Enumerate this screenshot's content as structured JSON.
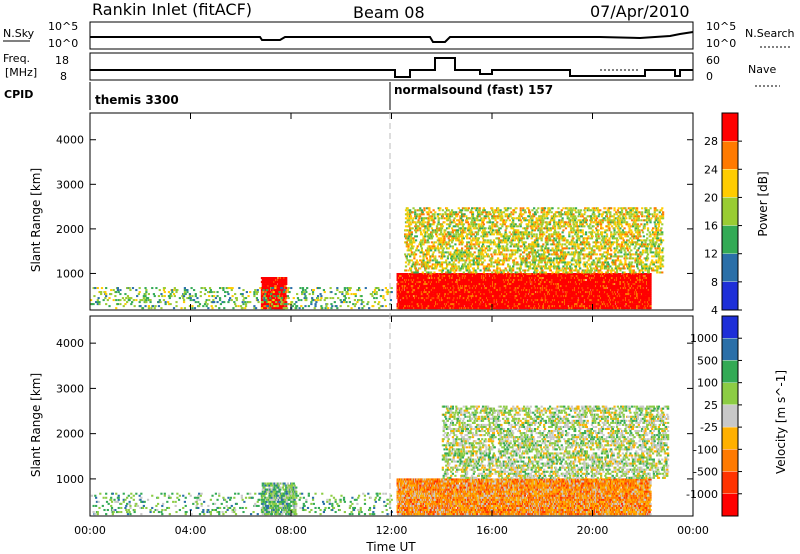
{
  "header": {
    "title": "Rankin Inlet (fitACF)",
    "beam": "Beam 08",
    "date": "07/Apr/2010"
  },
  "strips": {
    "nsky_label": "N.Sky",
    "nsky_ticks": [
      "10^5",
      "10^0"
    ],
    "nsearch_label": "N.Search",
    "nsearch_ticks": [
      "10^5",
      "10^0"
    ],
    "freq_label_1": "Freq.",
    "freq_label_2": "[MHz]",
    "freq_ticks": [
      "18",
      "8"
    ],
    "nave_label": "Nave",
    "nave_ticks": [
      "60",
      "0"
    ],
    "cpid_label": "CPID",
    "cpid_modes": [
      "themis 3300",
      "normalsound (fast) 157"
    ]
  },
  "time_axis": {
    "ticks": [
      "00:00",
      "04:00",
      "08:00",
      "12:00",
      "16:00",
      "20:00",
      "00:00"
    ],
    "label": "Time UT"
  },
  "chart_data": [
    {
      "type": "heatmap",
      "panel": "power",
      "ylabel": "Slant Range [km]",
      "yticks": [
        "1000",
        "2000",
        "3000",
        "4000"
      ],
      "ylim": [
        180,
        4600
      ],
      "xlim_hours": [
        0,
        24
      ],
      "colorbar_label": "Power [dB]",
      "colorbar_ticks": [
        "28",
        "24",
        "20",
        "16",
        "12",
        "8",
        "4"
      ],
      "colorbar_colors": [
        "#ff0000",
        "#ff7a00",
        "#ffcc00",
        "#99cc33",
        "#33aa55",
        "#2a6fa8",
        "#1e2fd8"
      ],
      "scatter_regions": [
        {
          "t0": 6.8,
          "t1": 7.8,
          "r0": 200,
          "r1": 900,
          "level": 0,
          "density": 0.8
        },
        {
          "t0": 12.2,
          "t1": 22.3,
          "r0": 200,
          "r1": 1000,
          "level": 0,
          "density": 0.9
        },
        {
          "t0": 12.5,
          "t1": 22.8,
          "r0": 1000,
          "r1": 2500,
          "level": 3,
          "density": 0.35
        },
        {
          "t0": 0.0,
          "t1": 12.0,
          "r0": 200,
          "r1": 700,
          "level": 4,
          "density": 0.15
        }
      ]
    },
    {
      "type": "heatmap",
      "panel": "velocity",
      "ylabel": "Slant Range [km]",
      "yticks": [
        "1000",
        "2000",
        "3000",
        "4000"
      ],
      "ylim": [
        180,
        4600
      ],
      "xlim_hours": [
        0,
        24
      ],
      "colorbar_label": "Velocity [m s^-1]",
      "colorbar_ticks": [
        "1000",
        "500",
        "100",
        "25",
        "-25",
        "-100",
        "-500",
        "-1000"
      ],
      "colorbar_colors": [
        "#1e2fd8",
        "#2a6fa8",
        "#33aa55",
        "#8ccc44",
        "#c8c8c8",
        "#ffb000",
        "#ff7a00",
        "#ff3300",
        "#ff0000"
      ],
      "scatter_regions": [
        {
          "t0": 6.8,
          "t1": 8.2,
          "r0": 200,
          "r1": 900,
          "level": 3,
          "density": 0.6
        },
        {
          "t0": 12.2,
          "t1": 22.3,
          "r0": 200,
          "r1": 1000,
          "level": 6,
          "density": 0.9
        },
        {
          "t0": 14.0,
          "t1": 23.0,
          "r0": 1000,
          "r1": 2600,
          "level": 4,
          "density": 0.35
        },
        {
          "t0": 0.0,
          "t1": 12.0,
          "r0": 200,
          "r1": 700,
          "level": 3,
          "density": 0.12
        }
      ]
    }
  ]
}
